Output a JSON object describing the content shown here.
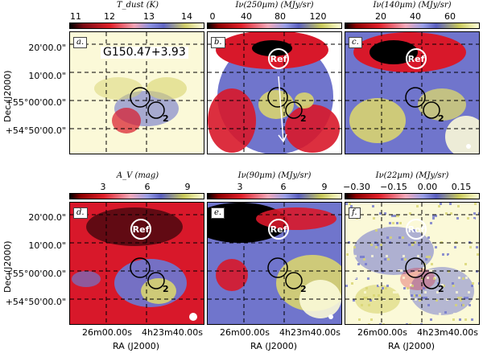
{
  "figure": {
    "source_label": "G150.47+3.93",
    "ref_label": "Ref",
    "region_number": "2",
    "x_axis_title": "RA (J2000)",
    "y_axis_title": "Dec (J2000)",
    "y_ticks": [
      "20'00.0\"",
      "10'00.0\"",
      "+55°00'00.0\"",
      "+54°50'00.0\""
    ],
    "x_ticks": [
      "26m00.00s",
      "4h23m40.00s"
    ]
  },
  "panels": [
    {
      "letter": "a.",
      "cbar_title": "T_dust (K)",
      "ticks": [
        "11",
        "12",
        "13",
        "14"
      ],
      "theme": "tdust"
    },
    {
      "letter": "b.",
      "cbar_title": "Iν(250µm) (MJy/sr)",
      "ticks": [
        "0",
        "40",
        "80",
        "120"
      ],
      "theme": "i250"
    },
    {
      "letter": "c.",
      "cbar_title": "Iν(140µm) (MJy/sr)",
      "ticks": [
        "20",
        "40",
        "60"
      ],
      "theme": "i140"
    },
    {
      "letter": "d.",
      "cbar_title": "A_V (mag)",
      "ticks": [
        "3",
        "6",
        "9"
      ],
      "theme": "av"
    },
    {
      "letter": "e.",
      "cbar_title": "Iν(90µm) (MJy/sr)",
      "ticks": [
        "3",
        "6",
        "9"
      ],
      "theme": "i90"
    },
    {
      "letter": "f.",
      "cbar_title": "Iν(22µm) (MJy/sr)",
      "ticks": [
        "−0.30",
        "−0.15",
        "0.00",
        "0.15"
      ],
      "theme": "i22"
    }
  ],
  "colors": {
    "red": "#d8182a",
    "dark": "#000000",
    "blue": "#7075cc",
    "yellow": "#d8d470",
    "pale": "#fbf9d8",
    "pink": "#f0a8b6"
  }
}
